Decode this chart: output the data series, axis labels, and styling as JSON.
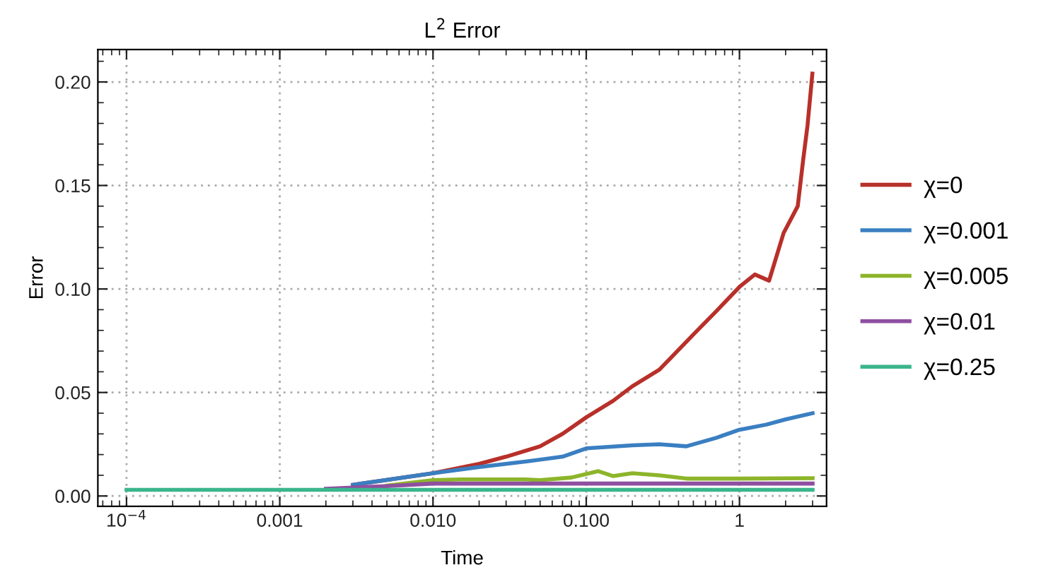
{
  "chart_data": {
    "type": "line",
    "title": "L$^{2}$ Error",
    "xlabel": "Time",
    "ylabel": "Error",
    "log": "x",
    "grid": true,
    "legend": "right",
    "line_style": "solid",
    "marker": "none",
    "xlim": [
      6.5e-05,
      3.7
    ],
    "ylim": [
      -0.005,
      0.2157
    ],
    "xticks": [
      {
        "value": 0.0001,
        "label": "10$^{−4}$"
      },
      {
        "value": 0.001,
        "label": "0.001"
      },
      {
        "value": 0.01,
        "label": "0.010"
      },
      {
        "value": 0.1,
        "label": "0.100"
      },
      {
        "value": 1,
        "label": "1"
      }
    ],
    "yticks": [
      {
        "value": 0,
        "label": "0.00"
      },
      {
        "value": 0.05,
        "label": "0.05"
      },
      {
        "value": 0.1,
        "label": "0.10"
      },
      {
        "value": 0.15,
        "label": "0.15"
      },
      {
        "value": 0.2,
        "label": "0.20"
      }
    ],
    "series": [
      {
        "name": "χ=0",
        "color": "#b8302a",
        "x": [
          0.003,
          0.01,
          0.02,
          0.03,
          0.05,
          0.07,
          0.1,
          0.15,
          0.2,
          0.3,
          0.5,
          0.7,
          1,
          1.26,
          1.56,
          1.94,
          2.4,
          2.6,
          2.78,
          2.99
        ],
        "values": [
          0.0054,
          0.011,
          0.0155,
          0.019,
          0.024,
          0.03,
          0.038,
          0.046,
          0.053,
          0.061,
          0.078,
          0.089,
          0.101,
          0.107,
          0.104,
          0.127,
          0.14,
          0.162,
          0.179,
          0.204
        ]
      },
      {
        "name": "χ=0.001",
        "color": "#3a7fc1",
        "x": [
          0.003,
          0.01,
          0.02,
          0.04,
          0.07,
          0.1,
          0.2,
          0.3,
          0.45,
          0.7,
          1,
          1.5,
          2,
          3
        ],
        "values": [
          0.0054,
          0.011,
          0.014,
          0.0166,
          0.019,
          0.023,
          0.0245,
          0.025,
          0.024,
          0.028,
          0.032,
          0.0345,
          0.037,
          0.04
        ]
      },
      {
        "name": "χ=0.005",
        "color": "#8db52a",
        "x": [
          0.005,
          0.01,
          0.015,
          0.04,
          0.05,
          0.08,
          0.12,
          0.15,
          0.2,
          0.3,
          0.45,
          1,
          3
        ],
        "values": [
          0.005,
          0.0077,
          0.008,
          0.008,
          0.0077,
          0.0089,
          0.012,
          0.0096,
          0.011,
          0.01,
          0.0084,
          0.0084,
          0.0086
        ]
      },
      {
        "name": "χ=0.01",
        "color": "#8e4fa0",
        "x": [
          0.002,
          0.005,
          0.01,
          3
        ],
        "values": [
          0.0035,
          0.0048,
          0.006,
          0.006
        ]
      },
      {
        "name": "χ=0.25",
        "color": "#3bb58c",
        "x": [
          0.0001,
          3
        ],
        "values": [
          0.003,
          0.003
        ]
      }
    ]
  }
}
